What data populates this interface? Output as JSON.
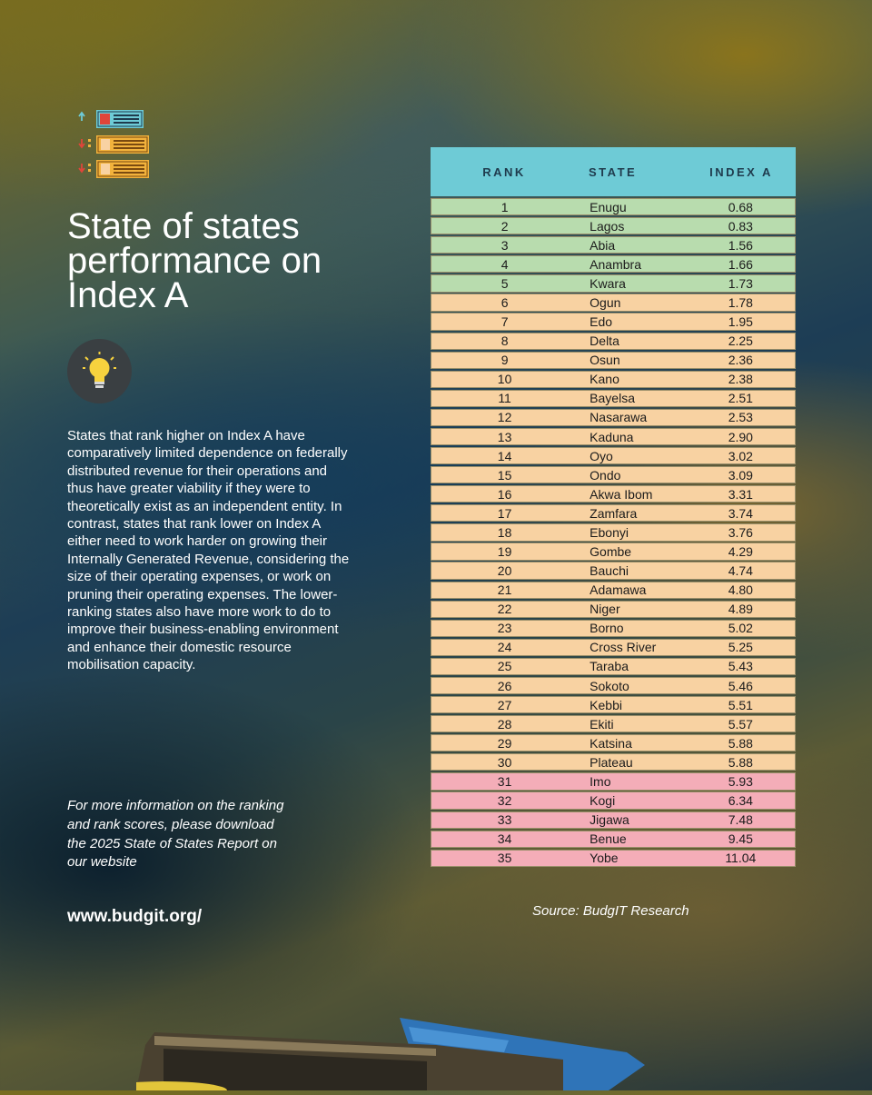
{
  "title": "State of states performance on Index A",
  "body": "States that rank higher on Index A have comparatively limited dependence on federally distributed revenue for their operations and thus have greater viability if they were to theoretically exist as an independent entity. In contrast, states that rank lower on Index A either need to work harder on growing their Internally Generated Revenue, considering the size of their operating expenses, or work on pruning their operating expenses. The lower-ranking states also have more work to do to improve their business-enabling environment and enhance their domestic resource mobilisation capacity.",
  "more_info": "For more information on the ranking and rank scores, please download the 2025 State of States Report on our website",
  "website": "www.budgit.org/",
  "source": "Source: BudgIT Research",
  "table": {
    "headers": {
      "rank": "RANK",
      "state": "STATE",
      "index": "INDEX A"
    },
    "rows": [
      {
        "rank": "1",
        "state": "Enugu",
        "index": "0.68",
        "tier": "top"
      },
      {
        "rank": "2",
        "state": "Lagos",
        "index": "0.83",
        "tier": "top"
      },
      {
        "rank": "3",
        "state": "Abia",
        "index": "1.56",
        "tier": "top"
      },
      {
        "rank": "4",
        "state": "Anambra",
        "index": "1.66",
        "tier": "top"
      },
      {
        "rank": "5",
        "state": "Kwara",
        "index": "1.73",
        "tier": "top"
      },
      {
        "rank": "6",
        "state": "Ogun",
        "index": "1.78",
        "tier": "mid"
      },
      {
        "rank": "7",
        "state": "Edo",
        "index": "1.95",
        "tier": "mid"
      },
      {
        "rank": "8",
        "state": "Delta",
        "index": "2.25",
        "tier": "mid"
      },
      {
        "rank": "9",
        "state": "Osun",
        "index": "2.36",
        "tier": "mid"
      },
      {
        "rank": "10",
        "state": "Kano",
        "index": "2.38",
        "tier": "mid"
      },
      {
        "rank": "11",
        "state": "Bayelsa",
        "index": "2.51",
        "tier": "mid"
      },
      {
        "rank": "12",
        "state": "Nasarawa",
        "index": "2.53",
        "tier": "mid"
      },
      {
        "rank": "13",
        "state": "Kaduna",
        "index": "2.90",
        "tier": "mid"
      },
      {
        "rank": "14",
        "state": "Oyo",
        "index": "3.02",
        "tier": "mid"
      },
      {
        "rank": "15",
        "state": "Ondo",
        "index": "3.09",
        "tier": "mid"
      },
      {
        "rank": "16",
        "state": "Akwa Ibom",
        "index": "3.31",
        "tier": "mid"
      },
      {
        "rank": "17",
        "state": "Zamfara",
        "index": "3.74",
        "tier": "mid"
      },
      {
        "rank": "18",
        "state": "Ebonyi",
        "index": "3.76",
        "tier": "mid"
      },
      {
        "rank": "19",
        "state": "Gombe",
        "index": "4.29",
        "tier": "mid"
      },
      {
        "rank": "20",
        "state": "Bauchi",
        "index": "4.74",
        "tier": "mid"
      },
      {
        "rank": "21",
        "state": "Adamawa",
        "index": "4.80",
        "tier": "mid"
      },
      {
        "rank": "22",
        "state": "Niger",
        "index": "4.89",
        "tier": "mid"
      },
      {
        "rank": "23",
        "state": "Borno",
        "index": "5.02",
        "tier": "mid"
      },
      {
        "rank": "24",
        "state": "Cross River",
        "index": "5.25",
        "tier": "mid"
      },
      {
        "rank": "25",
        "state": "Taraba",
        "index": "5.43",
        "tier": "mid"
      },
      {
        "rank": "26",
        "state": "Sokoto",
        "index": "5.46",
        "tier": "mid"
      },
      {
        "rank": "27",
        "state": "Kebbi",
        "index": "5.51",
        "tier": "mid"
      },
      {
        "rank": "28",
        "state": "Ekiti",
        "index": "5.57",
        "tier": "mid"
      },
      {
        "rank": "29",
        "state": "Katsina",
        "index": "5.88",
        "tier": "mid"
      },
      {
        "rank": "30",
        "state": "Plateau",
        "index": "5.88",
        "tier": "mid"
      },
      {
        "rank": "31",
        "state": "Imo",
        "index": "5.93",
        "tier": "low"
      },
      {
        "rank": "32",
        "state": "Kogi",
        "index": "6.34",
        "tier": "low"
      },
      {
        "rank": "33",
        "state": "Jigawa",
        "index": "7.48",
        "tier": "low"
      },
      {
        "rank": "34",
        "state": "Benue",
        "index": "9.45",
        "tier": "low"
      },
      {
        "rank": "35",
        "state": "Yobe",
        "index": "11.04",
        "tier": "low"
      }
    ]
  },
  "colors": {
    "header": "#6ecbd6",
    "top": "#b8dcae",
    "mid": "#f8d2a2",
    "low": "#f4adb8",
    "header_text": "#1f3b4d"
  },
  "icons": [
    "ranking-list-icon",
    "lightbulb-icon"
  ]
}
